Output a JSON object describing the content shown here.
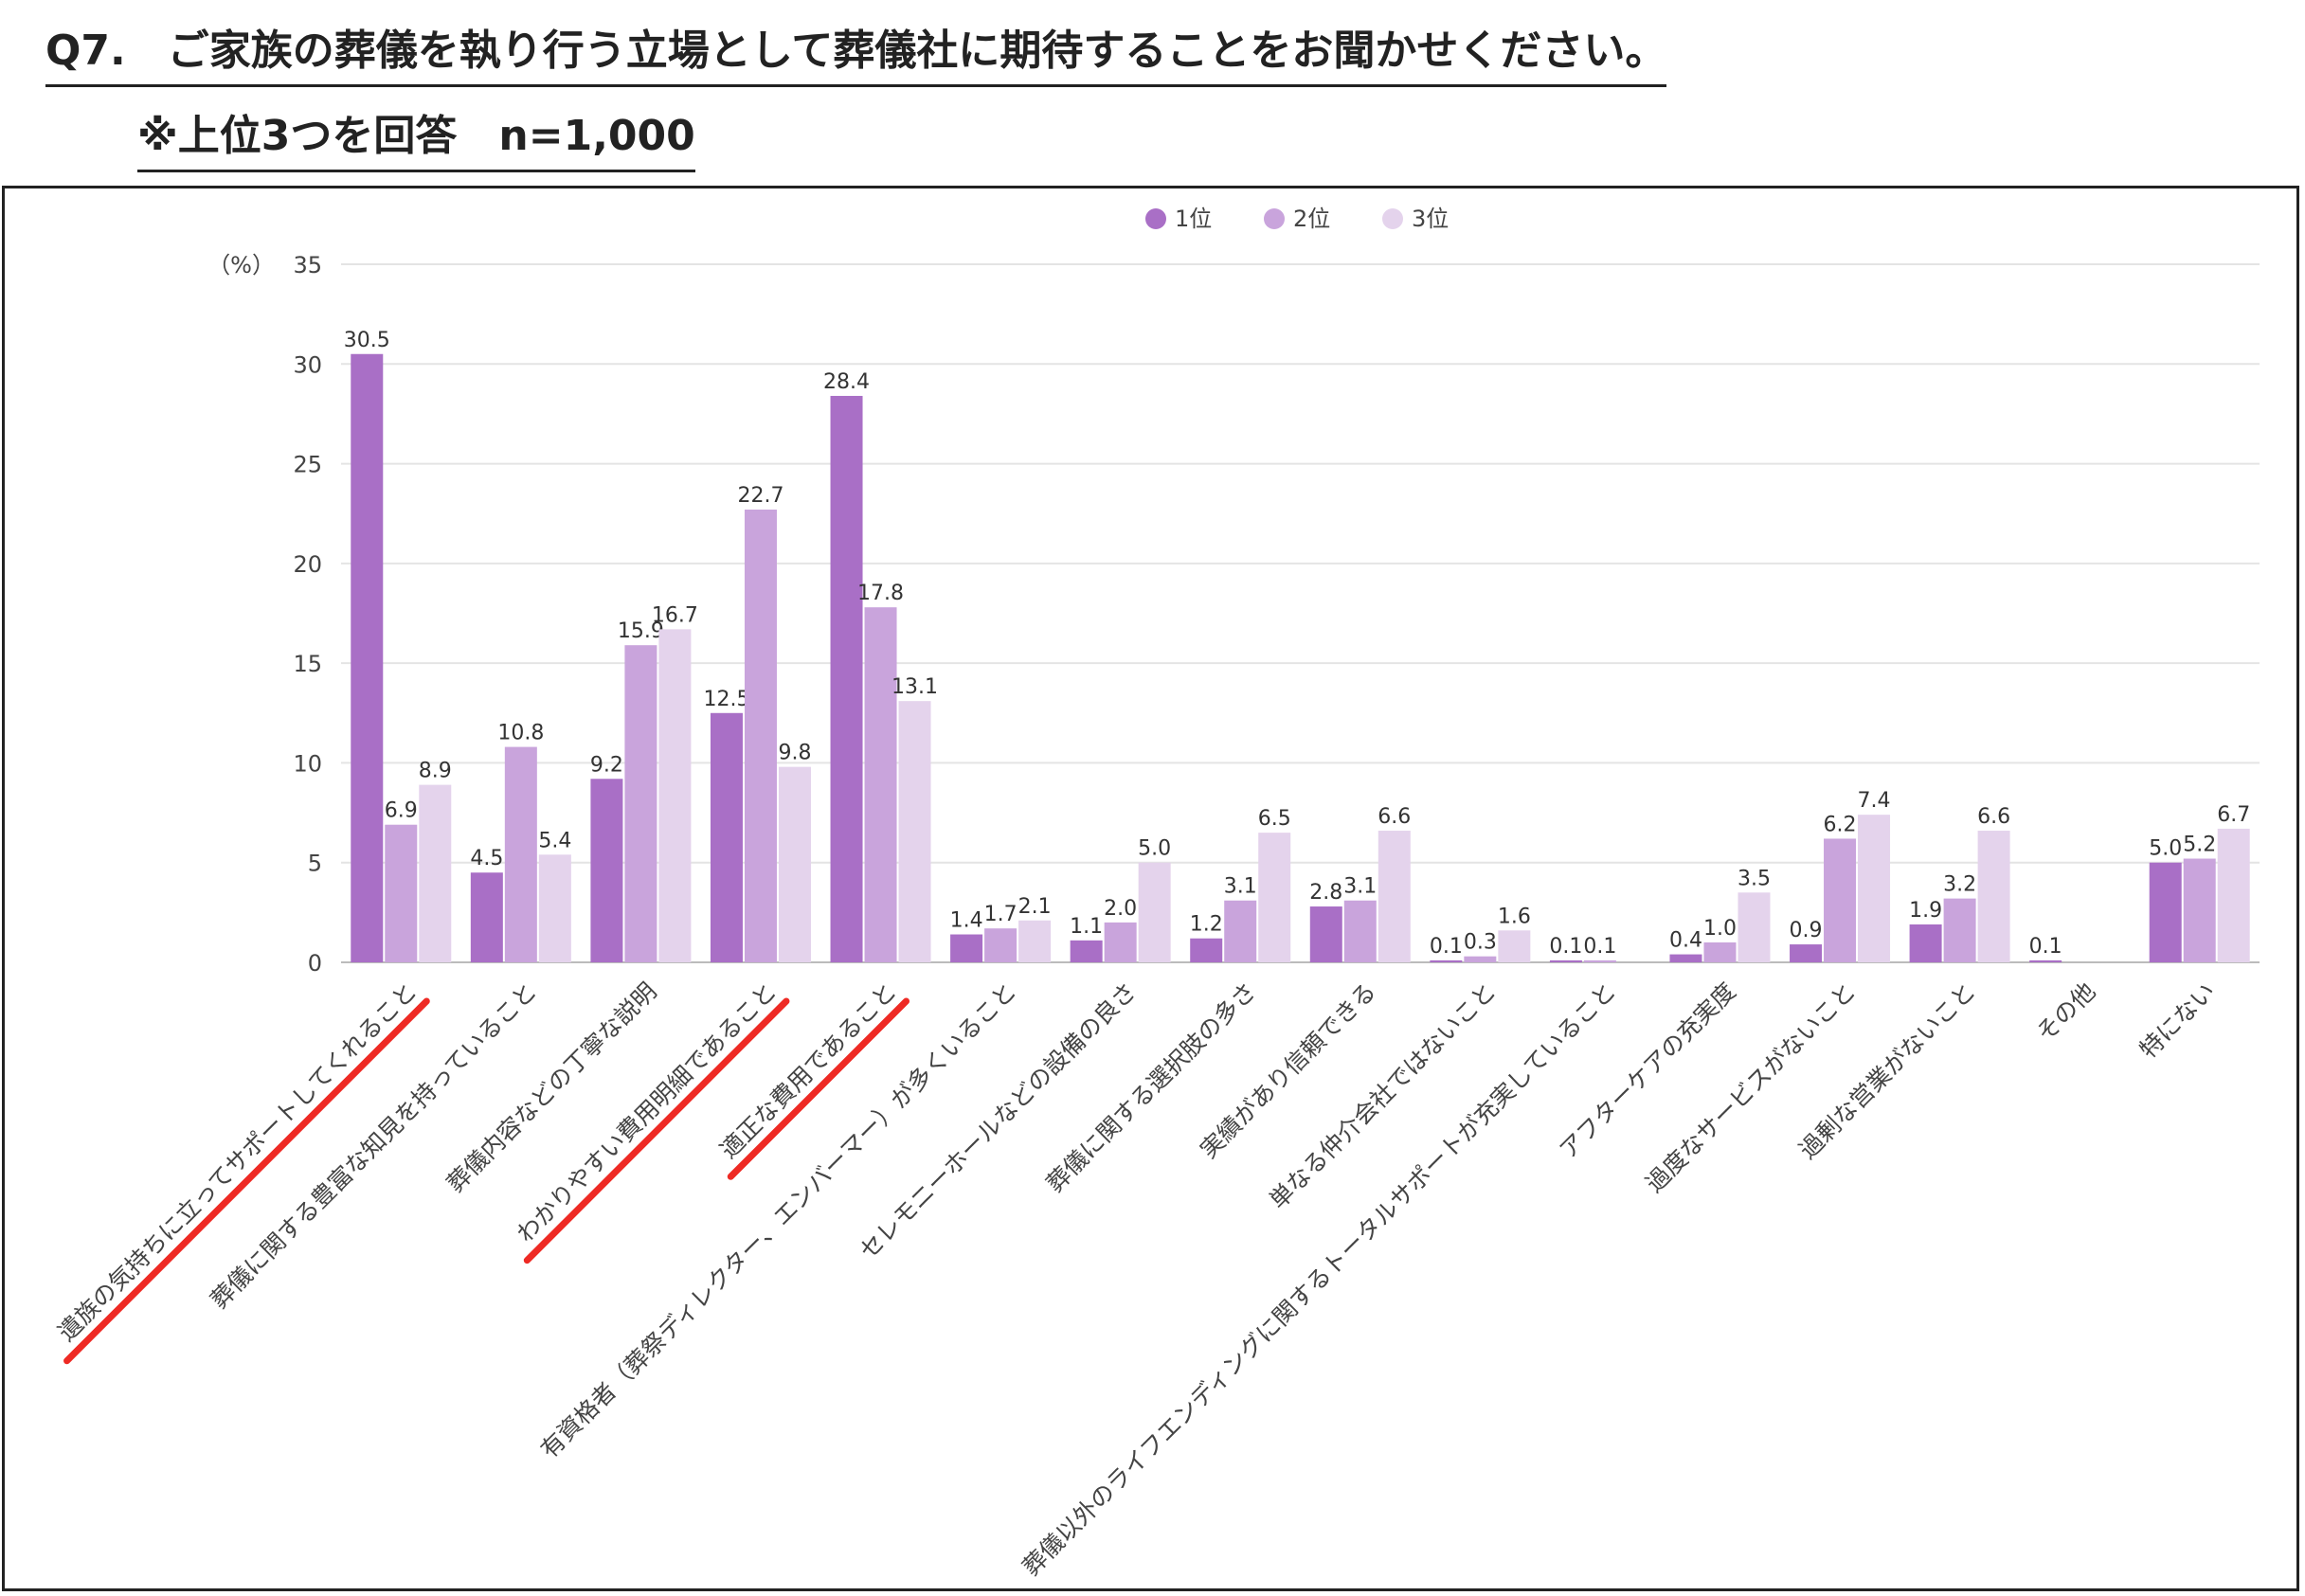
{
  "header": {
    "question": "Q7.　ご家族の葬儀を執り行う立場として葬儀社に期待することをお聞かせください。",
    "subtitle": "※上位3つを回答　n=1,000"
  },
  "chart_data": {
    "type": "bar",
    "unit_label": "（%）",
    "ylim": [
      0,
      35
    ],
    "yticks": [
      0,
      5,
      10,
      15,
      20,
      25,
      30,
      35
    ],
    "grid": true,
    "legend_position": "top-center",
    "categories": [
      "遺族の気持ちに立ってサポートしてくれること",
      "葬儀に関する豊富な知見を持っていること",
      "葬儀内容などの丁寧な説明",
      "わかりやすい費用明細であること",
      "適正な費用であること",
      "有資格者（葬祭ディレクター、エンバーマー）が多くいること",
      "セレモニーホールなどの設備の良さ",
      "葬儀に関する選択肢の多さ",
      "実績があり信頼できる",
      "単なる仲介会社ではないこと",
      "葬儀以外のライフエンディングに関するトータルサポートが充実していること",
      "アフターケアの充実度",
      "過度なサービスがないこと",
      "過剰な営業がないこと",
      "その他",
      "特にない"
    ],
    "series": [
      {
        "name": "1位",
        "color": "#a96fc6",
        "values": [
          30.5,
          4.5,
          9.2,
          12.5,
          28.4,
          1.4,
          1.1,
          1.2,
          2.8,
          0.1,
          0.1,
          0.4,
          0.9,
          1.9,
          0.1,
          5.0
        ]
      },
      {
        "name": "2位",
        "color": "#c9a4dc",
        "values": [
          6.9,
          10.8,
          15.9,
          22.7,
          17.8,
          1.7,
          2.0,
          3.1,
          3.1,
          0.3,
          0.1,
          1.0,
          6.2,
          3.2,
          null,
          5.2
        ]
      },
      {
        "name": "3位",
        "color": "#e4d3ec",
        "values": [
          8.9,
          5.4,
          16.7,
          9.8,
          13.1,
          2.1,
          5.0,
          6.5,
          6.6,
          1.6,
          null,
          3.5,
          7.4,
          6.6,
          null,
          6.7
        ]
      }
    ],
    "highlighted_categories": [
      0,
      3,
      4
    ],
    "highlight_color": "#ee2a24"
  }
}
